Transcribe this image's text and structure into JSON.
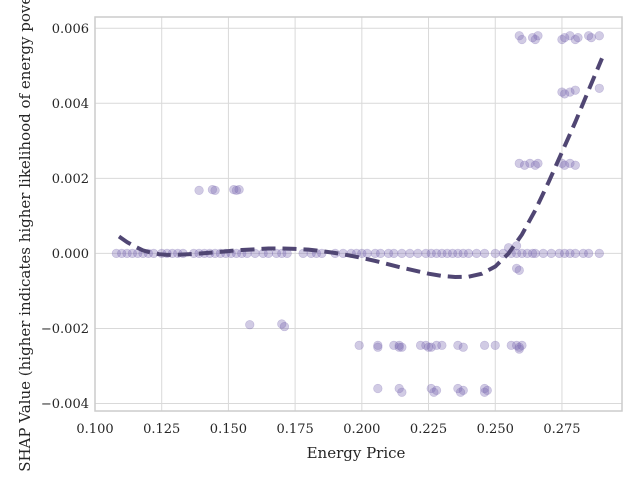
{
  "chart_data": {
    "type": "scatter",
    "xlabel": "Energy Price",
    "ylabel": "SHAP Value (higher indicates higher likelihood of energy poverty)",
    "xlim": [
      0.1,
      0.2975
    ],
    "ylim": [
      -0.0042,
      0.0063
    ],
    "x_ticks": [
      0.1,
      0.125,
      0.15,
      0.175,
      0.2,
      0.225,
      0.25,
      0.275
    ],
    "x_tick_labels": [
      "0.100",
      "0.125",
      "0.150",
      "0.175",
      "0.200",
      "0.225",
      "0.250",
      "0.275"
    ],
    "y_ticks": [
      -0.004,
      -0.002,
      0.0,
      0.002,
      0.004,
      0.006
    ],
    "y_tick_labels": [
      "−0.004",
      "−0.002",
      "0.000",
      "0.002",
      "0.004",
      "0.006"
    ],
    "grid": true,
    "colors": {
      "points": "#7b6bb3",
      "trend": "#504673",
      "grid": "#d9d9d9",
      "spine": "#cccccc"
    },
    "series": [
      {
        "kind": "points",
        "x": [
          0.108,
          0.11,
          0.112,
          0.114,
          0.116,
          0.118,
          0.12,
          0.122,
          0.125,
          0.127,
          0.129,
          0.131,
          0.133,
          0.137,
          0.139,
          0.141,
          0.143,
          0.145,
          0.147,
          0.149,
          0.151,
          0.153,
          0.155,
          0.157,
          0.16,
          0.163,
          0.165,
          0.168,
          0.17,
          0.172,
          0.178,
          0.181,
          0.183,
          0.185,
          0.19,
          0.193,
          0.196,
          0.198,
          0.2,
          0.202,
          0.205,
          0.207,
          0.21,
          0.212,
          0.215,
          0.218,
          0.221,
          0.224,
          0.226,
          0.228,
          0.23,
          0.232,
          0.234,
          0.236,
          0.238,
          0.24,
          0.243,
          0.246,
          0.25,
          0.253,
          0.256,
          0.258,
          0.26,
          0.262,
          0.264,
          0.265,
          0.268,
          0.271,
          0.274,
          0.276,
          0.278,
          0.28,
          0.283,
          0.285,
          0.289,
          0.139,
          0.144,
          0.145,
          0.152,
          0.153,
          0.154,
          0.158,
          0.17,
          0.171,
          0.199,
          0.206,
          0.206,
          0.212,
          0.214,
          0.214,
          0.215,
          0.222,
          0.224,
          0.225,
          0.226,
          0.228,
          0.23,
          0.236,
          0.238,
          0.246,
          0.25,
          0.256,
          0.258,
          0.259,
          0.259,
          0.26,
          0.206,
          0.214,
          0.215,
          0.226,
          0.227,
          0.228,
          0.236,
          0.237,
          0.238,
          0.246,
          0.246,
          0.247,
          0.255,
          0.258,
          0.258,
          0.259,
          0.259,
          0.261,
          0.263,
          0.265,
          0.266,
          0.275,
          0.276,
          0.278,
          0.28,
          0.275,
          0.276,
          0.278,
          0.28,
          0.289,
          0.259,
          0.26,
          0.264,
          0.265,
          0.266,
          0.275,
          0.276,
          0.278,
          0.28,
          0.281,
          0.285,
          0.286,
          0.289
        ],
        "y": [
          0,
          0,
          0,
          0,
          0,
          0,
          0,
          0,
          0,
          0,
          0,
          0,
          0,
          0,
          0,
          0,
          0,
          0,
          0,
          0,
          0,
          0,
          0,
          0,
          0,
          0,
          0,
          0,
          0,
          0,
          0,
          0,
          0,
          0,
          0,
          0,
          0,
          0,
          0,
          0,
          0,
          0,
          0,
          0,
          0,
          0,
          0,
          0,
          0,
          0,
          0,
          0,
          0,
          0,
          0,
          0,
          0,
          0,
          0,
          0,
          0,
          0,
          0,
          0,
          0,
          0,
          0,
          0,
          0,
          0,
          0,
          0,
          0,
          0,
          0,
          0.00168,
          0.0017,
          0.00168,
          0.0017,
          0.00168,
          0.0017,
          -0.0019,
          -0.00188,
          -0.00195,
          -0.00245,
          -0.0025,
          -0.00245,
          -0.00245,
          -0.0025,
          -0.00245,
          -0.0025,
          -0.00245,
          -0.00245,
          -0.0025,
          -0.0025,
          -0.00245,
          -0.00245,
          -0.00245,
          -0.0025,
          -0.00245,
          -0.00245,
          -0.00245,
          -0.00245,
          -0.0025,
          -0.00255,
          -0.00245,
          -0.0036,
          -0.0036,
          -0.0037,
          -0.0036,
          -0.0037,
          -0.00365,
          -0.0036,
          -0.0037,
          -0.00365,
          -0.0036,
          -0.0037,
          -0.00365,
          0.00015,
          0.0002,
          -0.0004,
          -0.00045,
          0.0024,
          0.00235,
          0.0024,
          0.00235,
          0.0024,
          0.0024,
          0.00235,
          0.0024,
          0.00235,
          0.0043,
          0.00425,
          0.0043,
          0.00435,
          0.0044,
          0.0058,
          0.0057,
          0.00575,
          0.0057,
          0.0058,
          0.0057,
          0.00575,
          0.0058,
          0.0057,
          0.00575,
          0.0058,
          0.00575,
          0.0058
        ]
      },
      {
        "kind": "trend",
        "x": [
          0.109,
          0.112,
          0.115,
          0.118,
          0.121,
          0.124,
          0.127,
          0.13,
          0.135,
          0.14,
          0.145,
          0.15,
          0.155,
          0.16,
          0.165,
          0.17,
          0.175,
          0.18,
          0.185,
          0.19,
          0.195,
          0.2,
          0.205,
          0.21,
          0.215,
          0.22,
          0.225,
          0.23,
          0.235,
          0.24,
          0.245,
          0.25,
          0.255,
          0.26,
          0.265,
          0.27,
          0.275,
          0.28,
          0.285,
          0.29
        ],
        "y": [
          0.00045,
          0.0003,
          0.00018,
          8e-05,
          2e-05,
          -2e-05,
          -4e-05,
          -4e-05,
          -2e-05,
          0.0,
          3e-05,
          6e-05,
          9e-05,
          0.00011,
          0.00013,
          0.00013,
          0.00012,
          0.0001,
          6e-05,
          1e-05,
          -5e-05,
          -0.00012,
          -0.0002,
          -0.00029,
          -0.00038,
          -0.00046,
          -0.00054,
          -0.0006,
          -0.00063,
          -0.00062,
          -0.00054,
          -0.00035,
          0.0,
          0.0005,
          0.00115,
          0.0019,
          0.0027,
          0.0035,
          0.00435,
          0.0052
        ]
      }
    ]
  }
}
